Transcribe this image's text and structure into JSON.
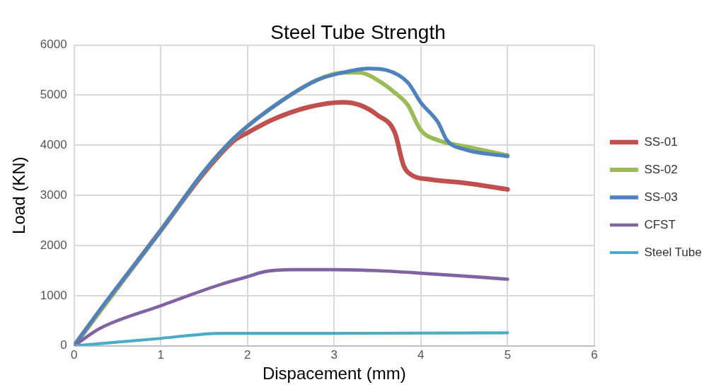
{
  "chart_data": {
    "type": "line",
    "title": "Steel Tube Strength",
    "xlabel": "Dispacement (mm)",
    "ylabel": "Load (KN)",
    "xlim": [
      0,
      6
    ],
    "xticks": [
      0,
      1,
      2,
      3,
      4,
      5,
      6
    ],
    "ylim": [
      0,
      6000
    ],
    "yticks": [
      0,
      1000,
      2000,
      3000,
      4000,
      5000,
      6000
    ],
    "grid": true,
    "legend": "right",
    "marker": "none",
    "line_style": "solid",
    "series": [
      {
        "name": "SS-01",
        "color": "#c0504d",
        "x": [
          0,
          0.3,
          1,
          1.5,
          1.85,
          2,
          2.3,
          2.7,
          3.1,
          3.3,
          3.5,
          3.7,
          3.8,
          3.9,
          4.1,
          4.5,
          5
        ],
        "values": [
          0,
          700,
          2300,
          3450,
          4100,
          4250,
          4520,
          4760,
          4860,
          4800,
          4600,
          4250,
          3600,
          3400,
          3320,
          3250,
          3120
        ]
      },
      {
        "name": "SS-02",
        "color": "#9bbb59",
        "x": [
          0,
          0.3,
          1,
          1.5,
          1.85,
          2.2,
          2.8,
          3.1,
          3.3,
          3.5,
          3.7,
          3.85,
          4,
          4.2,
          4.5,
          5
        ],
        "values": [
          0,
          700,
          2300,
          3480,
          4150,
          4650,
          5300,
          5450,
          5450,
          5300,
          5050,
          4800,
          4300,
          4100,
          3980,
          3800
        ]
      },
      {
        "name": "SS-03",
        "color": "#4f81bd",
        "x": [
          0,
          0.3,
          1,
          1.5,
          1.85,
          2.2,
          2.8,
          3.1,
          3.4,
          3.6,
          3.85,
          4,
          4.2,
          4.3,
          4.5,
          5
        ],
        "values": [
          0,
          720,
          2300,
          3480,
          4150,
          4650,
          5300,
          5450,
          5530,
          5500,
          5250,
          4850,
          4450,
          4100,
          3920,
          3780
        ]
      },
      {
        "name": "CFST",
        "color": "#8064a2",
        "x": [
          0,
          0.3,
          1,
          1.7,
          2,
          2.2,
          2.5,
          3,
          3.5,
          4,
          5
        ],
        "values": [
          0,
          350,
          800,
          1230,
          1380,
          1480,
          1520,
          1520,
          1500,
          1450,
          1330
        ]
      },
      {
        "name": "Steel Tube",
        "color": "#4bacc6",
        "x": [
          0,
          1,
          1.7,
          3,
          5
        ],
        "values": [
          0,
          150,
          250,
          250,
          260
        ]
      }
    ]
  }
}
